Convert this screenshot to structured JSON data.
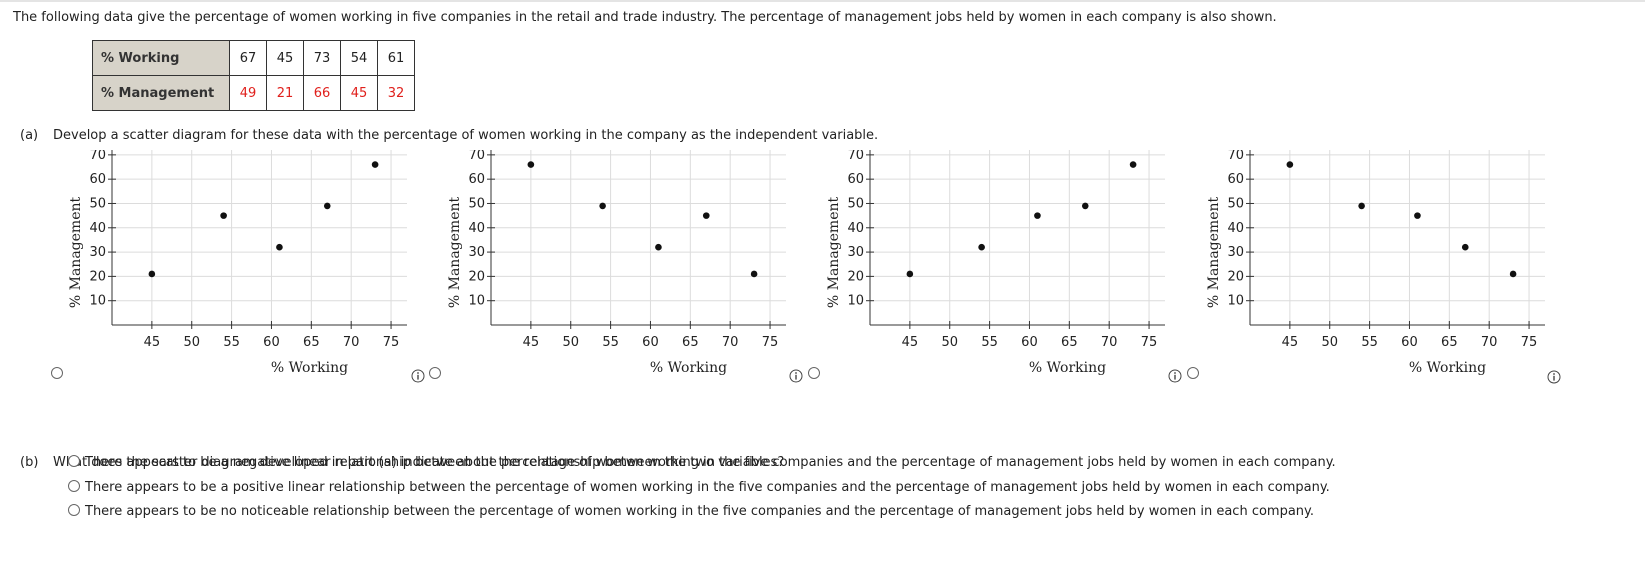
{
  "intro_text": "The following data give the percentage of women working in five companies in the retail and trade industry. The percentage of management jobs held by women in each company is also shown.",
  "table": {
    "row_labels": [
      "% Working",
      "% Management"
    ],
    "working": [
      "67",
      "45",
      "73",
      "54",
      "61"
    ],
    "management": [
      "49",
      "21",
      "66",
      "45",
      "32"
    ]
  },
  "part_a": {
    "label": "(a)",
    "question": "Develop a scatter diagram for these data with the percentage of women working in the company as the independent variable."
  },
  "part_b": {
    "label": "(b)",
    "question": "What does the scatter diagram developed in part (a) indicate about the relationship between the two variables?",
    "options": [
      "There appears to be a negative linear relationship between the percentage of women working in the five companies and the percentage of management jobs held by women in each company.",
      "There appears to be a positive linear relationship between the percentage of women working in the five companies and the percentage of management jobs held by women in each company.",
      "There appears to be no noticeable relationship between the percentage of women working in the five companies and the percentage of management jobs held by women in each company."
    ]
  },
  "chart_data": [
    {
      "type": "scatter",
      "xlabel": "% Working",
      "ylabel": "% Management",
      "xlim": [
        40,
        77
      ],
      "ylim": [
        0,
        72
      ],
      "xticks": [
        45,
        50,
        55,
        60,
        65,
        70,
        75
      ],
      "yticks": [
        10,
        20,
        30,
        40,
        50,
        60,
        70
      ],
      "grid": true,
      "points": [
        [
          45,
          21
        ],
        [
          54,
          45
        ],
        [
          61,
          32
        ],
        [
          67,
          49
        ],
        [
          73,
          66
        ]
      ]
    },
    {
      "type": "scatter",
      "xlabel": "% Working",
      "ylabel": "% Management",
      "xlim": [
        40,
        77
      ],
      "ylim": [
        0,
        72
      ],
      "xticks": [
        45,
        50,
        55,
        60,
        65,
        70,
        75
      ],
      "yticks": [
        10,
        20,
        30,
        40,
        50,
        60,
        70
      ],
      "grid": true,
      "points": [
        [
          45,
          66
        ],
        [
          54,
          49
        ],
        [
          61,
          32
        ],
        [
          67,
          45
        ],
        [
          73,
          21
        ]
      ]
    },
    {
      "type": "scatter",
      "xlabel": "% Working",
      "ylabel": "% Management",
      "xlim": [
        40,
        77
      ],
      "ylim": [
        0,
        72
      ],
      "xticks": [
        45,
        50,
        55,
        60,
        65,
        70,
        75
      ],
      "yticks": [
        10,
        20,
        30,
        40,
        50,
        60,
        70
      ],
      "grid": true,
      "points": [
        [
          45,
          21
        ],
        [
          54,
          32
        ],
        [
          61,
          45
        ],
        [
          67,
          49
        ],
        [
          73,
          66
        ]
      ]
    },
    {
      "type": "scatter",
      "xlabel": "% Working",
      "ylabel": "% Management",
      "xlim": [
        40,
        77
      ],
      "ylim": [
        0,
        72
      ],
      "xticks": [
        45,
        50,
        55,
        60,
        65,
        70,
        75
      ],
      "yticks": [
        10,
        20,
        30,
        40,
        50,
        60,
        70
      ],
      "grid": true,
      "points": [
        [
          45,
          66
        ],
        [
          54,
          49
        ],
        [
          61,
          45
        ],
        [
          67,
          32
        ],
        [
          73,
          21
        ]
      ]
    }
  ]
}
